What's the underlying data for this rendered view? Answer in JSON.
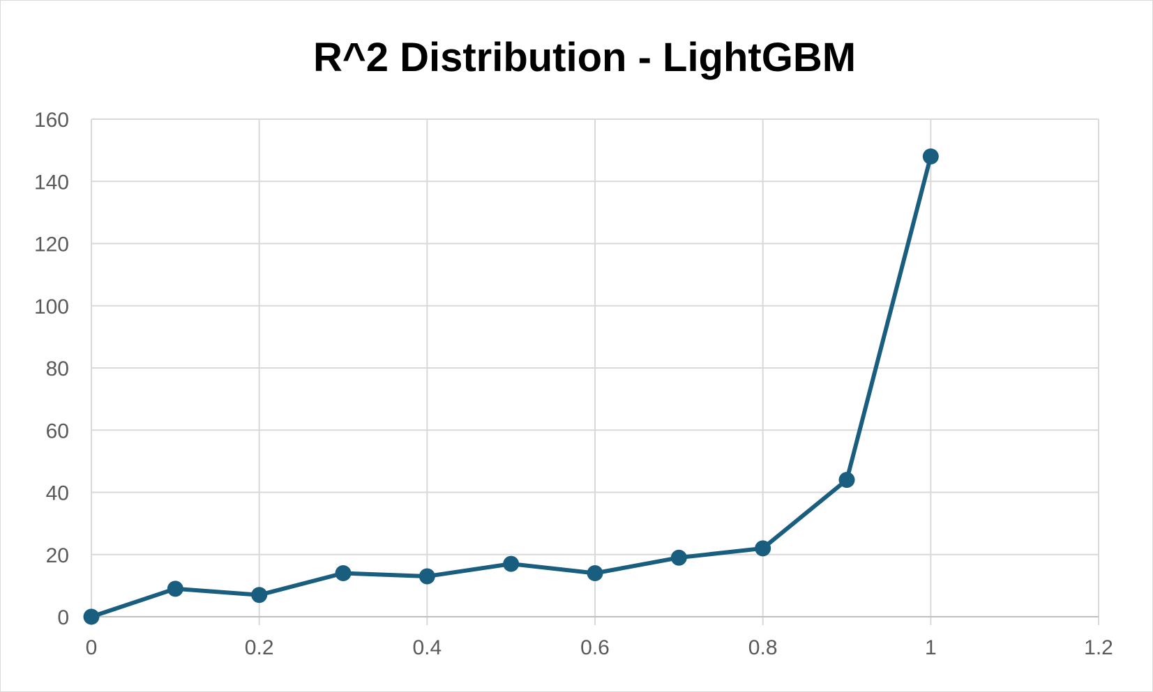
{
  "chart_data": {
    "type": "scatter",
    "title": "R^2 Distribution - LightGBM",
    "xlabel": "",
    "ylabel": "",
    "xlim": [
      0,
      1.2
    ],
    "ylim": [
      0,
      160
    ],
    "x_ticks": [
      "0",
      "0.2",
      "0.4",
      "0.6",
      "0.8",
      "1",
      "1.2"
    ],
    "y_ticks": [
      "0",
      "20",
      "40",
      "60",
      "80",
      "100",
      "120",
      "140",
      "160"
    ],
    "grid": true,
    "legend": "none",
    "series": [
      {
        "color": "#1a5e7f",
        "marker": "circle",
        "line": true,
        "x": [
          0,
          0.1,
          0.2,
          0.3,
          0.4,
          0.5,
          0.6,
          0.7,
          0.8,
          0.9,
          1.0
        ],
        "y": [
          0,
          9,
          7,
          14,
          13,
          17,
          14,
          19,
          22,
          44,
          148
        ]
      }
    ]
  },
  "colors": {
    "series": "#1a5e7f",
    "grid": "#d9d9d9",
    "axis": "#bfbfbf",
    "tick_text": "#595959",
    "title": "#000000"
  }
}
